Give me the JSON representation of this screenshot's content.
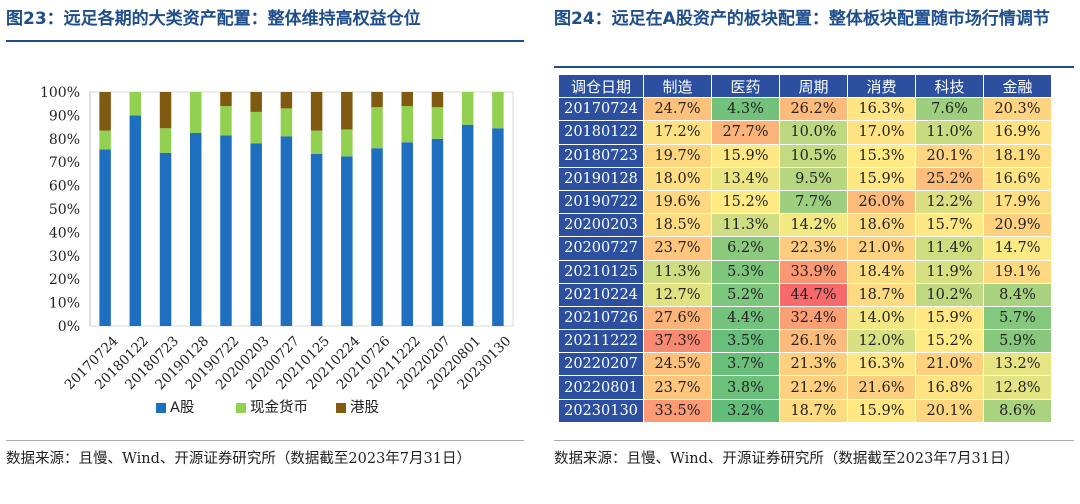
{
  "left": {
    "title": "图23：远足各期的大类资产配置：整体维持高权益仓位",
    "source": "数据来源：且慢、Wind、开源证券研究所（数据截至2023年7月31日）"
  },
  "right": {
    "title": "图24：远足在A股资产的板块配置：整体板块配置随市场行情调节",
    "source": "数据来源：且慢、Wind、开源证券研究所（数据截至2023年7月31日）"
  },
  "chart_data": [
    {
      "type": "bar",
      "stacked": true,
      "categories": [
        "20170724",
        "20180122",
        "20180723",
        "20190128",
        "20190722",
        "20200203",
        "20200727",
        "20210125",
        "20210224",
        "20210726",
        "20211222",
        "20220207",
        "20220801",
        "20230130"
      ],
      "series": [
        {
          "name": "A股",
          "color": "#1f6fc0",
          "values": [
            75.5,
            90,
            74,
            82.5,
            81.5,
            78,
            81,
            73.5,
            72.5,
            76,
            78.5,
            80,
            86,
            84.5
          ]
        },
        {
          "name": "现金货币",
          "color": "#92d050",
          "values": [
            8,
            10,
            10.5,
            17.5,
            12.5,
            13.5,
            12,
            10,
            11.5,
            17.5,
            15.5,
            13.5,
            14,
            15.5
          ]
        },
        {
          "name": "港股",
          "color": "#7f5a10",
          "values": [
            16.5,
            0,
            15.5,
            0,
            6,
            8.5,
            7,
            16.5,
            16,
            6.5,
            6,
            6.5,
            0,
            0
          ]
        }
      ],
      "ylim": [
        0,
        100
      ],
      "yticks": [
        "0%",
        "10%",
        "20%",
        "30%",
        "40%",
        "50%",
        "60%",
        "70%",
        "80%",
        "90%",
        "100%"
      ],
      "legend": "bottom"
    },
    {
      "type": "heatmap",
      "corner_label": "调仓日期",
      "columns": [
        "制造",
        "医药",
        "周期",
        "消费",
        "科技",
        "金融"
      ],
      "rows": [
        {
          "date": "20170724",
          "values": [
            "24.7%",
            "4.3%",
            "26.2%",
            "16.3%",
            "7.6%",
            "20.3%"
          ]
        },
        {
          "date": "20180122",
          "values": [
            "17.2%",
            "27.7%",
            "10.0%",
            "17.0%",
            "11.0%",
            "16.9%"
          ]
        },
        {
          "date": "20180723",
          "values": [
            "19.7%",
            "15.9%",
            "10.5%",
            "15.3%",
            "20.1%",
            "18.1%"
          ]
        },
        {
          "date": "20190128",
          "values": [
            "18.0%",
            "13.4%",
            "9.5%",
            "15.9%",
            "25.2%",
            "16.6%"
          ]
        },
        {
          "date": "20190722",
          "values": [
            "19.6%",
            "15.2%",
            "7.7%",
            "26.0%",
            "12.2%",
            "17.9%"
          ]
        },
        {
          "date": "20200203",
          "values": [
            "18.5%",
            "11.3%",
            "14.2%",
            "18.6%",
            "15.7%",
            "20.9%"
          ]
        },
        {
          "date": "20200727",
          "values": [
            "23.7%",
            "6.2%",
            "22.3%",
            "21.0%",
            "11.4%",
            "14.7%"
          ]
        },
        {
          "date": "20210125",
          "values": [
            "11.3%",
            "5.3%",
            "33.9%",
            "18.4%",
            "11.9%",
            "19.1%"
          ]
        },
        {
          "date": "20210224",
          "values": [
            "12.7%",
            "5.2%",
            "44.7%",
            "18.7%",
            "10.2%",
            "8.4%"
          ]
        },
        {
          "date": "20210726",
          "values": [
            "27.6%",
            "4.4%",
            "32.4%",
            "14.0%",
            "15.9%",
            "5.7%"
          ]
        },
        {
          "date": "20211222",
          "values": [
            "37.3%",
            "3.5%",
            "26.1%",
            "12.0%",
            "15.2%",
            "5.9%"
          ]
        },
        {
          "date": "20220207",
          "values": [
            "24.5%",
            "3.7%",
            "21.3%",
            "16.3%",
            "21.0%",
            "13.2%"
          ]
        },
        {
          "date": "20220801",
          "values": [
            "23.7%",
            "3.8%",
            "21.2%",
            "21.6%",
            "16.8%",
            "12.8%"
          ]
        },
        {
          "date": "20230130",
          "values": [
            "33.5%",
            "3.2%",
            "18.7%",
            "15.9%",
            "20.1%",
            "8.6%"
          ]
        }
      ]
    }
  ]
}
